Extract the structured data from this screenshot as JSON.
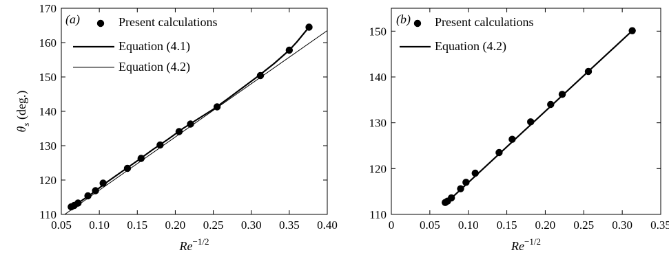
{
  "chart_data": [
    {
      "type": "scatter",
      "panel_label": "(a)",
      "xlabel": "Re",
      "xlabel_sup": "−1/2",
      "ylabel": "θ",
      "ylabel_sub": "s",
      "ylabel_unit": " (deg.)",
      "xlim": [
        0.05,
        0.4
      ],
      "ylim": [
        110,
        170
      ],
      "x_ticks": [
        0.05,
        0.1,
        0.15,
        0.2,
        0.25,
        0.3,
        0.35,
        0.4
      ],
      "x_tick_labels": [
        "0.05",
        "0.10",
        "0.15",
        "0.20",
        "0.25",
        "0.30",
        "0.35",
        "0.40"
      ],
      "y_ticks": [
        110,
        120,
        130,
        140,
        150,
        160,
        170
      ],
      "y_tick_labels": [
        "110",
        "120",
        "130",
        "140",
        "150",
        "160",
        "170"
      ],
      "legend_position": "top-left",
      "series": [
        {
          "name": "Present calculations",
          "kind": "points",
          "x": [
            0.063,
            0.067,
            0.072,
            0.085,
            0.095,
            0.105,
            0.137,
            0.155,
            0.18,
            0.205,
            0.22,
            0.255,
            0.312,
            0.35,
            0.376
          ],
          "y": [
            112.2,
            112.6,
            113.3,
            115.4,
            116.9,
            119.1,
            123.4,
            126.3,
            130.2,
            134.1,
            136.3,
            141.3,
            150.4,
            157.8,
            164.5
          ]
        },
        {
          "name": "Equation (4.1)",
          "kind": "thick-line",
          "x": [
            0.063,
            0.07,
            0.09,
            0.11,
            0.13,
            0.15,
            0.17,
            0.19,
            0.21,
            0.23,
            0.25,
            0.27,
            0.29,
            0.31,
            0.33,
            0.35,
            0.36,
            0.376
          ],
          "y": [
            112.2,
            113.0,
            116.0,
            119.4,
            122.5,
            125.6,
            128.8,
            131.8,
            135.0,
            137.8,
            140.6,
            143.8,
            147.1,
            150.4,
            153.9,
            157.8,
            160.2,
            164.5
          ]
        },
        {
          "name": "Equation (4.2)",
          "kind": "thin-line",
          "x": [
            0.05,
            0.4
          ],
          "y": [
            109.3,
            163.5
          ]
        }
      ]
    },
    {
      "type": "scatter",
      "panel_label": "(b)",
      "xlabel": "Re",
      "xlabel_sup": "−1/2",
      "xlim": [
        0,
        0.35
      ],
      "ylim": [
        110,
        155
      ],
      "x_ticks": [
        0,
        0.05,
        0.1,
        0.15,
        0.2,
        0.25,
        0.3,
        0.35
      ],
      "x_tick_labels": [
        "0",
        "0.05",
        "0.10",
        "0.15",
        "0.20",
        "0.25",
        "0.30",
        "0.35"
      ],
      "y_ticks": [
        110,
        120,
        130,
        140,
        150
      ],
      "y_tick_labels": [
        "110",
        "120",
        "130",
        "140",
        "150"
      ],
      "legend_position": "top-left",
      "series": [
        {
          "name": "Present calculations",
          "kind": "points",
          "x": [
            0.07,
            0.073,
            0.078,
            0.09,
            0.097,
            0.109,
            0.14,
            0.157,
            0.181,
            0.207,
            0.222,
            0.256,
            0.313
          ],
          "y": [
            112.6,
            112.9,
            113.6,
            115.6,
            117.0,
            119.0,
            123.5,
            126.4,
            130.2,
            134.0,
            136.2,
            141.2,
            150.1
          ]
        },
        {
          "name": "Equation (4.2)",
          "kind": "thick-line",
          "x": [
            0.07,
            0.313
          ],
          "y": [
            112.3,
            150.1
          ]
        }
      ]
    }
  ]
}
